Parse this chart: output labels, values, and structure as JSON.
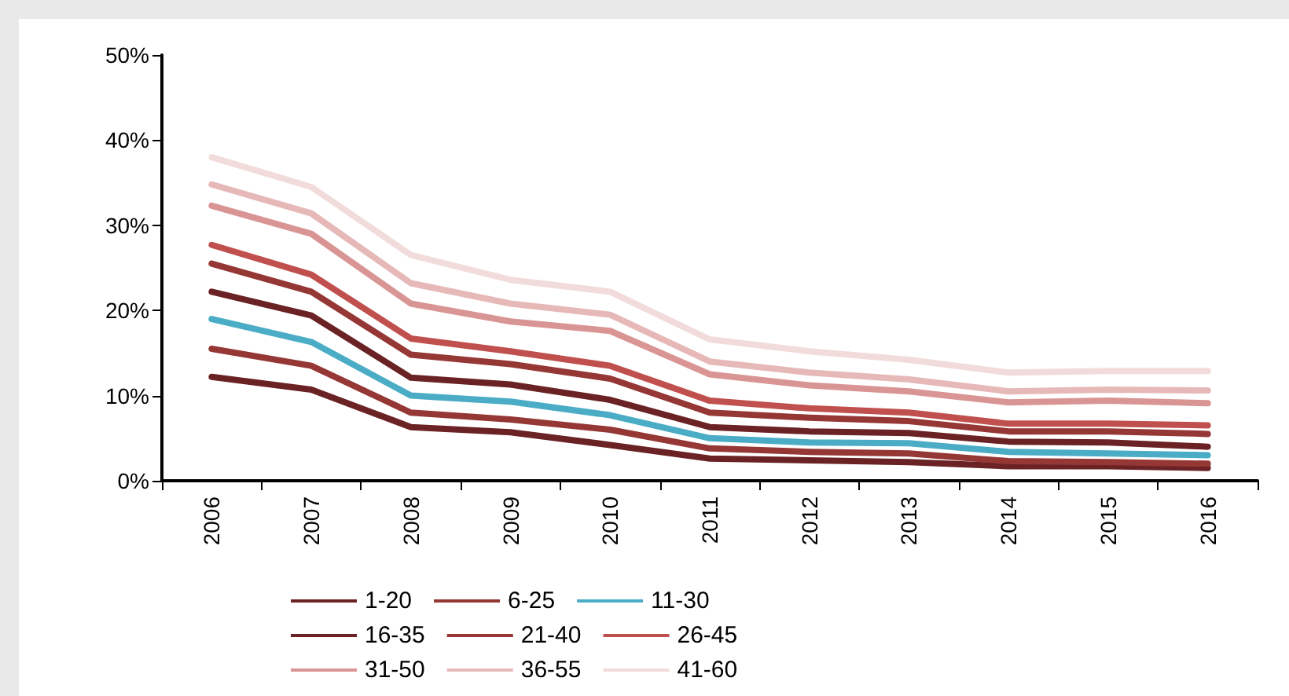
{
  "chart_data": {
    "type": "line",
    "categories": [
      "2006",
      "2007",
      "2008",
      "2009",
      "2010",
      "2011",
      "2012",
      "2013",
      "2014",
      "2015",
      "2016"
    ],
    "ylim": [
      0,
      50
    ],
    "yticks": [
      {
        "value": 0,
        "label": "0%"
      },
      {
        "value": 10,
        "label": "10%"
      },
      {
        "value": 20,
        "label": "20%"
      },
      {
        "value": 30,
        "label": "30%"
      },
      {
        "value": 40,
        "label": "40%"
      },
      {
        "value": 50,
        "label": "50%"
      }
    ],
    "grid": false,
    "legend": "bottom",
    "marker": "none",
    "line_style": "solid",
    "series": [
      {
        "name": "1-20",
        "color": "#6b2224",
        "values": [
          12.2,
          10.7,
          6.3,
          5.7,
          4.2,
          2.6,
          2.4,
          2.2,
          1.7,
          1.7,
          1.5
        ]
      },
      {
        "name": "6-25",
        "color": "#953735",
        "values": [
          15.5,
          13.5,
          8.0,
          7.2,
          6.0,
          3.8,
          3.4,
          3.2,
          2.3,
          2.2,
          2.0
        ]
      },
      {
        "name": "11-30",
        "color": "#4bacc6",
        "values": [
          19.0,
          16.3,
          10.0,
          9.3,
          7.7,
          5.0,
          4.5,
          4.4,
          3.4,
          3.2,
          3.0
        ]
      },
      {
        "name": "16-35",
        "color": "#6b2224",
        "values": [
          22.2,
          19.4,
          12.1,
          11.3,
          9.5,
          6.3,
          5.8,
          5.6,
          4.6,
          4.5,
          4.0
        ]
      },
      {
        "name": "21-40",
        "color": "#953735",
        "values": [
          25.5,
          22.2,
          14.8,
          13.7,
          12.0,
          8.0,
          7.4,
          7.0,
          5.8,
          5.8,
          5.5
        ]
      },
      {
        "name": "26-45",
        "color": "#c0504d",
        "values": [
          27.7,
          24.2,
          16.7,
          15.2,
          13.5,
          9.4,
          8.5,
          8.0,
          6.7,
          6.7,
          6.5
        ]
      },
      {
        "name": "31-50",
        "color": "#d99594",
        "values": [
          32.3,
          29.0,
          20.8,
          18.7,
          17.6,
          12.5,
          11.2,
          10.5,
          9.2,
          9.4,
          9.1
        ]
      },
      {
        "name": "36-55",
        "color": "#e6b9b8",
        "values": [
          34.8,
          31.4,
          23.2,
          20.8,
          19.5,
          14.0,
          12.7,
          11.9,
          10.5,
          10.7,
          10.6
        ]
      },
      {
        "name": "41-60",
        "color": "#f2dcdb",
        "values": [
          38.0,
          34.5,
          26.5,
          23.6,
          22.2,
          16.6,
          15.2,
          14.2,
          12.7,
          12.9,
          12.9
        ]
      }
    ]
  }
}
